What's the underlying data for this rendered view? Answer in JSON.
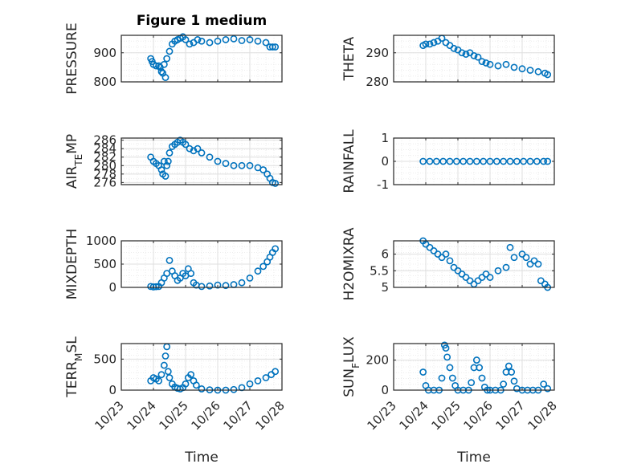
{
  "title": "Figure 1 medium",
  "colors": {
    "marker": "#0072BD",
    "axis": "#262626",
    "grid": "#DFDFDF",
    "minor_grid": "#ECECEC"
  },
  "chart_data": [
    {
      "type": "scatter",
      "ylabel": "PRESSURE",
      "ylim": [
        800,
        960
      ],
      "yticks": [
        800,
        900
      ],
      "grid": true,
      "x": [
        "10/23 22:00",
        "10/23 23:00",
        "10/24 00:00",
        "10/24 02:00",
        "10/24 04:00",
        "10/24 05:00",
        "10/24 06:00",
        "10/24 07:00",
        "10/24 08:00",
        "10/24 09:00",
        "10/24 10:00",
        "10/24 12:00",
        "10/24 14:00",
        "10/24 16:00",
        "10/24 18:00",
        "10/24 20:00",
        "10/24 22:00",
        "10/25 00:00",
        "10/25 03:00",
        "10/25 06:00",
        "10/25 09:00",
        "10/25 12:00",
        "10/25 18:00",
        "10/26 00:00",
        "10/26 06:00",
        "10/26 12:00",
        "10/26 18:00",
        "10/27 00:00",
        "10/27 06:00",
        "10/27 12:00",
        "10/27 15:00",
        "10/27 17:00",
        "10/27 19:00"
      ],
      "y": [
        880,
        870,
        860,
        855,
        855,
        850,
        835,
        830,
        860,
        815,
        880,
        905,
        930,
        940,
        945,
        950,
        955,
        945,
        930,
        935,
        945,
        940,
        935,
        940,
        945,
        948,
        942,
        945,
        940,
        935,
        920,
        920,
        920
      ]
    },
    {
      "type": "scatter",
      "ylabel": "THETA",
      "ylim": [
        280,
        296
      ],
      "yticks": [
        280,
        290
      ],
      "grid": true,
      "x": [
        "10/23 22:00",
        "10/24 00:00",
        "10/24 03:00",
        "10/24 06:00",
        "10/24 09:00",
        "10/24 12:00",
        "10/24 15:00",
        "10/24 18:00",
        "10/24 21:00",
        "10/25 00:00",
        "10/25 03:00",
        "10/25 06:00",
        "10/25 09:00",
        "10/25 12:00",
        "10/25 15:00",
        "10/25 18:00",
        "10/25 21:00",
        "10/26 00:00",
        "10/26 06:00",
        "10/26 12:00",
        "10/26 18:00",
        "10/27 00:00",
        "10/27 06:00",
        "10/27 12:00",
        "10/27 17:00",
        "10/27 19:00"
      ],
      "y": [
        292.5,
        293,
        293,
        293.5,
        294,
        295,
        293.5,
        292.5,
        291.5,
        291,
        290,
        289.5,
        290,
        289,
        288.5,
        287,
        286.5,
        286,
        285.5,
        286,
        285,
        284.5,
        284,
        283.5,
        283,
        282.5
      ]
    },
    {
      "type": "scatter",
      "ylabel": "AIR_T_EMP",
      "ylim": [
        275.5,
        286.5
      ],
      "yticks": [
        276,
        278,
        280,
        282,
        284,
        286
      ],
      "grid": true,
      "x": [
        "10/23 22:00",
        "10/24 00:00",
        "10/24 02:00",
        "10/24 04:00",
        "10/24 06:00",
        "10/24 07:00",
        "10/24 08:00",
        "10/24 09:00",
        "10/24 10:00",
        "10/24 11:00",
        "10/24 12:00",
        "10/24 14:00",
        "10/24 16:00",
        "10/24 18:00",
        "10/24 20:00",
        "10/24 22:00",
        "10/25 00:00",
        "10/25 03:00",
        "10/25 06:00",
        "10/25 09:00",
        "10/25 12:00",
        "10/25 18:00",
        "10/26 00:00",
        "10/26 06:00",
        "10/26 12:00",
        "10/26 18:00",
        "10/27 00:00",
        "10/27 06:00",
        "10/27 10:00",
        "10/27 13:00",
        "10/27 15:00",
        "10/27 17:00",
        "10/27 19:00"
      ],
      "y": [
        282,
        281,
        280.5,
        280,
        279,
        278,
        281,
        277.5,
        280,
        281,
        283,
        284.5,
        285,
        285.5,
        286,
        285.5,
        285,
        284,
        283.5,
        284,
        283,
        282,
        281,
        280.5,
        280,
        280,
        280,
        279.5,
        279,
        278,
        277,
        276,
        275.8
      ]
    },
    {
      "type": "scatter",
      "ylabel": "RAINFALL",
      "ylim": [
        -1,
        1
      ],
      "yticks": [
        -1,
        0,
        1
      ],
      "grid": true,
      "x": [
        "10/23 22:00",
        "10/24 03:00",
        "10/24 08:00",
        "10/24 13:00",
        "10/24 18:00",
        "10/24 23:00",
        "10/25 04:00",
        "10/25 09:00",
        "10/25 14:00",
        "10/25 19:00",
        "10/26 00:00",
        "10/26 05:00",
        "10/26 10:00",
        "10/26 15:00",
        "10/26 20:00",
        "10/27 01:00",
        "10/27 06:00",
        "10/27 11:00",
        "10/27 16:00",
        "10/27 19:00"
      ],
      "y": [
        0,
        0,
        0,
        0,
        0,
        0,
        0,
        0,
        0,
        0,
        0,
        0,
        0,
        0,
        0,
        0,
        0,
        0,
        0,
        0
      ]
    },
    {
      "type": "scatter",
      "ylabel": "MIXDEPTH",
      "ylim": [
        0,
        1000
      ],
      "yticks": [
        0,
        500,
        1000
      ],
      "grid": true,
      "x": [
        "10/23 22:00",
        "10/24 00:00",
        "10/24 02:00",
        "10/24 04:00",
        "10/24 06:00",
        "10/24 08:00",
        "10/24 10:00",
        "10/24 12:00",
        "10/24 14:00",
        "10/24 16:00",
        "10/24 18:00",
        "10/24 20:00",
        "10/24 22:00",
        "10/25 00:00",
        "10/25 02:00",
        "10/25 04:00",
        "10/25 06:00",
        "10/25 08:00",
        "10/25 12:00",
        "10/25 18:00",
        "10/26 00:00",
        "10/26 06:00",
        "10/26 12:00",
        "10/26 18:00",
        "10/27 00:00",
        "10/27 06:00",
        "10/27 10:00",
        "10/27 13:00",
        "10/27 15:00",
        "10/27 17:00",
        "10/27 19:00"
      ],
      "y": [
        20,
        10,
        15,
        20,
        100,
        200,
        300,
        580,
        350,
        250,
        150,
        200,
        300,
        250,
        400,
        300,
        100,
        50,
        20,
        30,
        50,
        40,
        60,
        100,
        200,
        350,
        450,
        550,
        650,
        750,
        830
      ]
    },
    {
      "type": "scatter",
      "ylabel": "H2OMIXRA",
      "ylim": [
        5,
        6.4
      ],
      "yticks": [
        5,
        5.5,
        6
      ],
      "grid": true,
      "x": [
        "10/23 22:00",
        "10/24 00:00",
        "10/24 03:00",
        "10/24 06:00",
        "10/24 09:00",
        "10/24 12:00",
        "10/24 15:00",
        "10/24 18:00",
        "10/24 21:00",
        "10/25 00:00",
        "10/25 03:00",
        "10/25 06:00",
        "10/25 09:00",
        "10/25 12:00",
        "10/25 15:00",
        "10/25 18:00",
        "10/25 21:00",
        "10/26 00:00",
        "10/26 06:00",
        "10/26 12:00",
        "10/26 15:00",
        "10/26 18:00",
        "10/27 00:00",
        "10/27 03:00",
        "10/27 06:00",
        "10/27 09:00",
        "10/27 12:00",
        "10/27 14:00",
        "10/27 17:00",
        "10/27 19:00"
      ],
      "y": [
        6.4,
        6.3,
        6.2,
        6.1,
        6,
        5.9,
        6,
        5.8,
        5.6,
        5.5,
        5.4,
        5.3,
        5.2,
        5.1,
        5.2,
        5.3,
        5.4,
        5.3,
        5.5,
        5.6,
        6.2,
        5.9,
        6.0,
        5.9,
        5.7,
        5.8,
        5.7,
        5.2,
        5.1,
        5.0
      ]
    },
    {
      "type": "scatter",
      "ylabel": "TERR_MSL",
      "ylim": [
        0,
        750
      ],
      "yticks": [
        0,
        500
      ],
      "grid": true,
      "x": [
        "10/23 22:00",
        "10/24 00:00",
        "10/24 02:00",
        "10/24 04:00",
        "10/24 06:00",
        "10/24 08:00",
        "10/24 09:00",
        "10/24 10:00",
        "10/24 11:00",
        "10/24 12:00",
        "10/24 14:00",
        "10/24 16:00",
        "10/24 18:00",
        "10/24 20:00",
        "10/24 22:00",
        "10/25 00:00",
        "10/25 02:00",
        "10/25 04:00",
        "10/25 06:00",
        "10/25 08:00",
        "10/25 12:00",
        "10/25 18:00",
        "10/26 00:00",
        "10/26 06:00",
        "10/26 12:00",
        "10/26 18:00",
        "10/27 00:00",
        "10/27 06:00",
        "10/27 12:00",
        "10/27 16:00",
        "10/27 19:00"
      ],
      "y": [
        150,
        200,
        180,
        150,
        250,
        400,
        550,
        700,
        300,
        200,
        100,
        50,
        30,
        20,
        40,
        100,
        200,
        250,
        150,
        80,
        20,
        5,
        0,
        0,
        10,
        40,
        100,
        150,
        200,
        250,
        300
      ]
    },
    {
      "type": "scatter",
      "ylabel": "SUN_FLUX",
      "ylim": [
        0,
        310
      ],
      "yticks": [
        0,
        200
      ],
      "grid": true,
      "x": [
        "10/23 22:00",
        "10/24 00:00",
        "10/24 02:00",
        "10/24 06:00",
        "10/24 10:00",
        "10/24 12:00",
        "10/24 14:00",
        "10/24 15:00",
        "10/24 16:00",
        "10/24 18:00",
        "10/24 20:00",
        "10/24 22:00",
        "10/25 00:00",
        "10/25 04:00",
        "10/25 08:00",
        "10/25 10:00",
        "10/25 12:00",
        "10/25 14:00",
        "10/25 16:00",
        "10/25 18:00",
        "10/25 20:00",
        "10/25 22:00",
        "10/26 00:00",
        "10/26 04:00",
        "10/26 08:00",
        "10/26 10:00",
        "10/26 12:00",
        "10/26 14:00",
        "10/26 16:00",
        "10/26 18:00",
        "10/26 20:00",
        "10/27 00:00",
        "10/27 04:00",
        "10/27 08:00",
        "10/27 12:00",
        "10/27 16:00",
        "10/27 19:00"
      ],
      "y": [
        120,
        30,
        0,
        0,
        0,
        80,
        300,
        280,
        220,
        150,
        80,
        30,
        0,
        0,
        0,
        50,
        150,
        200,
        150,
        80,
        20,
        0,
        0,
        0,
        0,
        40,
        120,
        160,
        120,
        60,
        10,
        0,
        0,
        0,
        0,
        40,
        10
      ]
    }
  ],
  "axes": {
    "xticks": [
      "10/23",
      "10/24",
      "10/25",
      "10/26",
      "10/27",
      "10/28"
    ],
    "xlabel": "Time"
  }
}
